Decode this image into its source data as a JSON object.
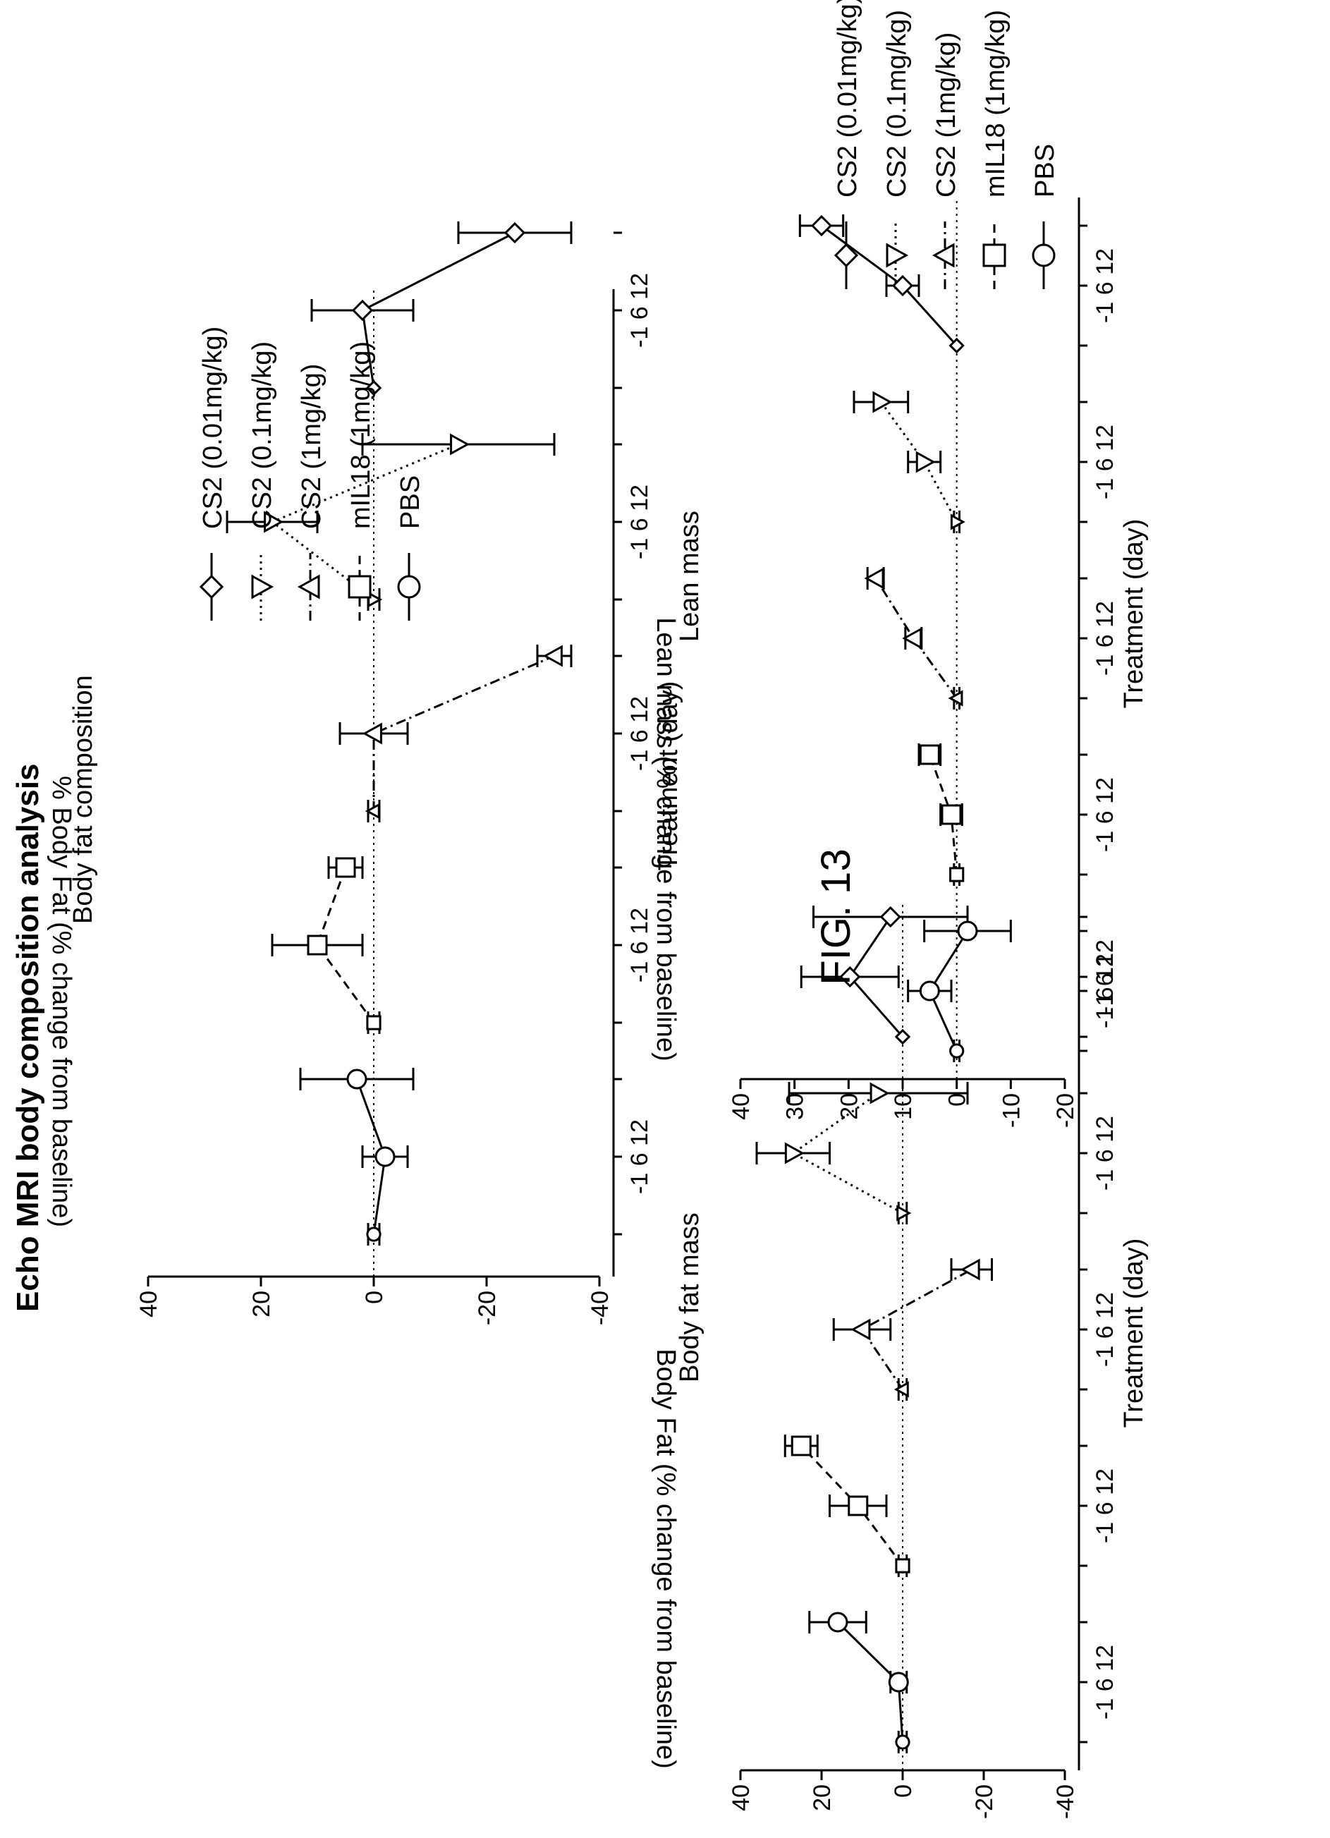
{
  "main_title": "Echo MRI body composition analysis",
  "figure_label": "FIG. 13",
  "legend_items": [
    {
      "label": "CS2 (0.01mg/kg)",
      "marker": "diamond",
      "dash": "solid"
    },
    {
      "label": "CS2 (0.1mg/kg)",
      "marker": "triangle-down",
      "dash": "dotted"
    },
    {
      "label": "CS2 (1mg/kg)",
      "marker": "triangle-up",
      "dash": "dashdot"
    },
    {
      "label": "mIL18 (1mg/kg)",
      "marker": "square",
      "dash": "dashed"
    },
    {
      "label": "PBS",
      "marker": "circle",
      "dash": "solid"
    }
  ],
  "chart_data": [
    {
      "id": "body-fat-composition",
      "type": "scatter",
      "title": "Body fat composition",
      "xlabel": "Treatment (day)",
      "ylabel": "% Body Fat (% change from baseline)",
      "ylim": [
        -40,
        40
      ],
      "yticks": [
        40,
        20,
        0,
        -20,
        -40
      ],
      "ytick_labels": [
        "40",
        "20",
        "0",
        "-20",
        "-40"
      ],
      "x_group_labels": [
        "-1 6 12",
        "-1 6 12",
        "-1 6 12",
        "-1 6 12",
        "-1 6 12"
      ],
      "x_days": [
        -1,
        6,
        12
      ],
      "baseline_dotted": true,
      "series": [
        {
          "name": "PBS",
          "marker": "circle",
          "dash": "solid",
          "values": [
            0,
            -2,
            3
          ],
          "errors": [
            1,
            4,
            10
          ]
        },
        {
          "name": "mIL18 (1mg/kg)",
          "marker": "square",
          "dash": "dashed",
          "values": [
            0,
            10,
            5
          ],
          "errors": [
            1,
            8,
            3
          ]
        },
        {
          "name": "CS2 (1mg/kg)",
          "marker": "triangle-up",
          "dash": "dashdot",
          "values": [
            0,
            0,
            -32
          ],
          "errors": [
            1,
            6,
            3
          ]
        },
        {
          "name": "CS2 (0.1mg/kg)",
          "marker": "triangle-down",
          "dash": "dotted",
          "values": [
            0,
            18,
            -15
          ],
          "errors": [
            1,
            8,
            17
          ]
        },
        {
          "name": "CS2 (0.01mg/kg)",
          "marker": "diamond",
          "dash": "solid",
          "values": [
            0,
            2,
            -25
          ],
          "errors": [
            0,
            9,
            10
          ]
        }
      ]
    },
    {
      "id": "body-fat-mass",
      "type": "scatter",
      "title": "Body fat mass",
      "xlabel": "Treatment (day)",
      "ylabel": "Body Fat (% change from baseline)",
      "ylim": [
        -40,
        40
      ],
      "yticks": [
        40,
        20,
        0,
        -20,
        -40
      ],
      "ytick_labels": [
        "40",
        "20",
        "0",
        "-20",
        "-40"
      ],
      "x_group_labels": [
        "-1 6 12",
        "-1 6 12",
        "-1 6 12",
        "-1 6 12",
        "-1 6 12"
      ],
      "x_days": [
        -1,
        6,
        12
      ],
      "baseline_dotted": true,
      "series": [
        {
          "name": "PBS",
          "marker": "circle",
          "dash": "solid",
          "values": [
            0,
            1,
            16
          ],
          "errors": [
            1,
            2,
            7
          ]
        },
        {
          "name": "mIL18 (1mg/kg)",
          "marker": "square",
          "dash": "dashed",
          "values": [
            0,
            11,
            25
          ],
          "errors": [
            1,
            7,
            4
          ]
        },
        {
          "name": "CS2 (1mg/kg)",
          "marker": "triangle-up",
          "dash": "dashdot",
          "values": [
            0,
            10,
            -17
          ],
          "errors": [
            1,
            7,
            5
          ]
        },
        {
          "name": "CS2 (0.1mg/kg)",
          "marker": "triangle-down",
          "dash": "dotted",
          "values": [
            0,
            27,
            6
          ],
          "errors": [
            1,
            9,
            22
          ]
        },
        {
          "name": "CS2 (0.01mg/kg)",
          "marker": "diamond",
          "dash": "solid",
          "values": [
            0,
            13,
            3
          ],
          "errors": [
            0,
            12,
            19
          ]
        }
      ]
    },
    {
      "id": "lean-mass",
      "type": "scatter",
      "title": "Lean mass",
      "xlabel": "Treatment (day)",
      "ylabel": "Lean mass (% change from baseline)",
      "ylim": [
        -20,
        40
      ],
      "yticks": [
        40,
        30,
        20,
        10,
        0,
        -10,
        -20
      ],
      "ytick_labels": [
        "40",
        "30",
        "20",
        "10",
        "0",
        "-10",
        "-20"
      ],
      "x_group_labels": [
        "-1 6 12",
        "-1 6 12",
        "-1 6 12",
        "-1 6 12",
        "-1 6 12"
      ],
      "x_days": [
        -1,
        6,
        12
      ],
      "baseline_dotted": true,
      "series": [
        {
          "name": "PBS",
          "marker": "circle",
          "dash": "solid",
          "values": [
            0,
            5,
            -2
          ],
          "errors": [
            0.5,
            4,
            8
          ]
        },
        {
          "name": "mIL18 (1mg/kg)",
          "marker": "square",
          "dash": "dashed",
          "values": [
            0,
            1,
            5
          ],
          "errors": [
            0.5,
            2,
            2
          ]
        },
        {
          "name": "CS2 (1mg/kg)",
          "marker": "triangle-up",
          "dash": "dashdot",
          "values": [
            0,
            8,
            15
          ],
          "errors": [
            0.5,
            1.5,
            1.5
          ]
        },
        {
          "name": "CS2 (0.1mg/kg)",
          "marker": "triangle-down",
          "dash": "dotted",
          "values": [
            0,
            6,
            14
          ],
          "errors": [
            0.5,
            3,
            5
          ]
        },
        {
          "name": "CS2 (0.01mg/kg)",
          "marker": "diamond",
          "dash": "solid",
          "values": [
            0,
            10,
            25
          ],
          "errors": [
            0,
            3,
            4
          ]
        }
      ]
    }
  ]
}
